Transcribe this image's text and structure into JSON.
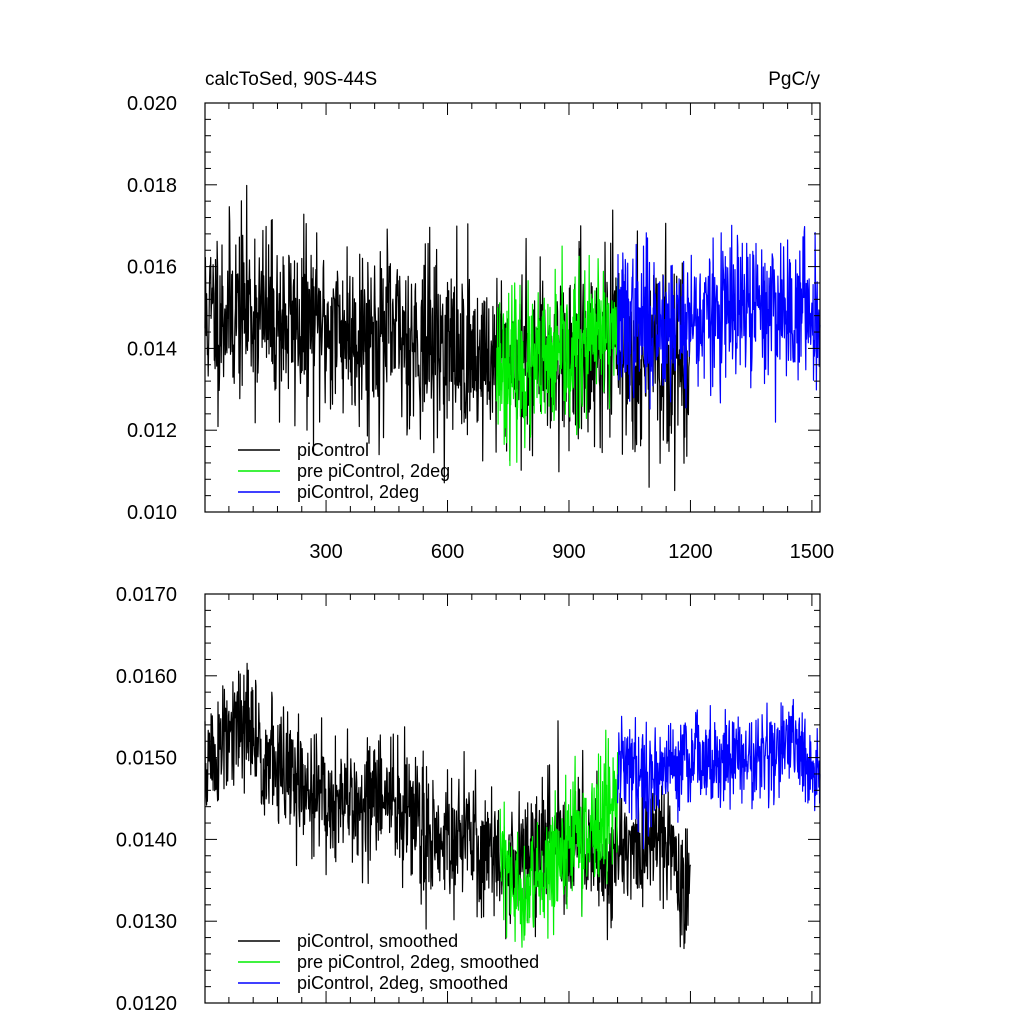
{
  "chart_data": [
    {
      "type": "line",
      "title": "calcToSed, 90S-44S",
      "units": "PgC/y",
      "xlim": [
        1,
        1520
      ],
      "ylim": [
        0.01,
        0.02
      ],
      "x_ticks": [
        300,
        600,
        900,
        1200,
        1500
      ],
      "x_tick_labels": [
        "300",
        "600",
        "900",
        "1200",
        "1500"
      ],
      "y_ticks": [
        0.01,
        0.012,
        0.014,
        0.016,
        0.018,
        0.02
      ],
      "y_tick_labels": [
        "0.010",
        "0.012",
        "0.014",
        "0.016",
        "0.018",
        "0.020"
      ],
      "legend_position": "bottom-left",
      "grid": false,
      "series": [
        {
          "name": "piControl",
          "color": "#000000",
          "x_range": [
            1,
            1200
          ],
          "anchors": [
            [
              1,
              0.0148
            ],
            [
              100,
              0.015
            ],
            [
              200,
              0.0146
            ],
            [
              300,
              0.0145
            ],
            [
              400,
              0.0144
            ],
            [
              500,
              0.0143
            ],
            [
              600,
              0.014
            ],
            [
              700,
              0.0137
            ],
            [
              800,
              0.0138
            ],
            [
              900,
              0.0139
            ],
            [
              1000,
              0.014
            ],
            [
              1100,
              0.0137
            ],
            [
              1200,
              0.0136
            ]
          ],
          "noise_sd": 0.0011,
          "seed": 11
        },
        {
          "name": "pre piControl, 2deg",
          "color": "#00ee00",
          "x_range": [
            720,
            1020
          ],
          "anchors": [
            [
              720,
              0.0137
            ],
            [
              800,
              0.0134
            ],
            [
              900,
              0.0138
            ],
            [
              1020,
              0.0145
            ]
          ],
          "noise_sd": 0.0009,
          "seed": 23
        },
        {
          "name": "piControl, 2deg",
          "color": "#0000ff",
          "x_range": [
            1020,
            1520
          ],
          "anchors": [
            [
              1020,
              0.0146
            ],
            [
              1200,
              0.0147
            ],
            [
              1400,
              0.015
            ],
            [
              1520,
              0.0149
            ]
          ],
          "noise_sd": 0.0009,
          "seed": 37
        }
      ]
    },
    {
      "type": "line",
      "title": "",
      "xlim": [
        1,
        1520
      ],
      "ylim": [
        0.012,
        0.017
      ],
      "x_ticks": [
        300,
        600,
        900,
        1200,
        1500
      ],
      "x_tick_labels": [],
      "y_ticks": [
        0.012,
        0.013,
        0.014,
        0.015,
        0.016,
        0.017
      ],
      "y_tick_labels": [
        "0.0120",
        "0.0130",
        "0.0140",
        "0.0150",
        "0.0160",
        "0.0170"
      ],
      "legend_position": "bottom-left",
      "grid": false,
      "series": [
        {
          "name": "piControl, smoothed",
          "color": "#000000",
          "x_range": [
            1,
            1200
          ],
          "anchors": [
            [
              1,
              0.0149
            ],
            [
              60,
              0.0152
            ],
            [
              100,
              0.0154
            ],
            [
              150,
              0.015
            ],
            [
              250,
              0.0146
            ],
            [
              350,
              0.0144
            ],
            [
              450,
              0.0145
            ],
            [
              550,
              0.0141
            ],
            [
              650,
              0.014
            ],
            [
              750,
              0.0137
            ],
            [
              850,
              0.0139
            ],
            [
              950,
              0.014
            ],
            [
              1000,
              0.0137
            ],
            [
              1050,
              0.0138
            ],
            [
              1100,
              0.014
            ],
            [
              1150,
              0.0141
            ],
            [
              1180,
              0.0133
            ],
            [
              1200,
              0.0135
            ]
          ],
          "noise_sd": 0.0004,
          "seed": 51
        },
        {
          "name": "pre piControl, 2deg, smoothed",
          "color": "#00ee00",
          "x_range": [
            730,
            1020
          ],
          "anchors": [
            [
              730,
              0.0138
            ],
            [
              760,
              0.0133
            ],
            [
              800,
              0.0134
            ],
            [
              850,
              0.0137
            ],
            [
              900,
              0.0139
            ],
            [
              950,
              0.0141
            ],
            [
              1000,
              0.0144
            ],
            [
              1020,
              0.0146
            ]
          ],
          "noise_sd": 0.00035,
          "seed": 63
        },
        {
          "name": "piControl, 2deg, smoothed",
          "color": "#0000ff",
          "x_range": [
            1020,
            1520
          ],
          "anchors": [
            [
              1020,
              0.0149
            ],
            [
              1100,
              0.0148
            ],
            [
              1200,
              0.015
            ],
            [
              1300,
              0.015
            ],
            [
              1400,
              0.015
            ],
            [
              1450,
              0.0152
            ],
            [
              1500,
              0.0148
            ],
            [
              1520,
              0.0147
            ]
          ],
          "noise_sd": 0.0003,
          "seed": 79
        }
      ]
    }
  ]
}
